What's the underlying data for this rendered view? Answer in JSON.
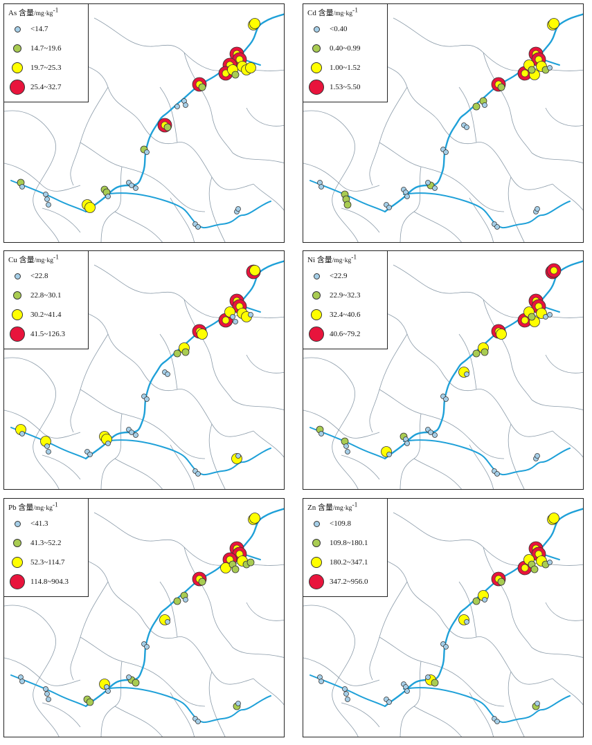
{
  "colors": {
    "river": "#1ea0d8",
    "boundary": "#8a9aa8",
    "class_fill": [
      "#a6cfe8",
      "#a9cc52",
      "#ffff00",
      "#e8143c"
    ],
    "class_stroke": "#333333"
  },
  "panels": [
    {
      "element": "As",
      "title_suffix": "含量",
      "unit": "/mg·kg",
      "unit_exp": "-1",
      "classes": [
        "<14.7",
        "14.7~19.6",
        "19.7~25.3",
        "25.4~32.7"
      ]
    },
    {
      "element": "Cd",
      "title_suffix": "含量",
      "unit": "/mg·kg",
      "unit_exp": "-1",
      "classes": [
        "<0.40",
        "0.40~0.99",
        "1.00~1.52",
        "1.53~5.50"
      ]
    },
    {
      "element": "Cu",
      "title_suffix": "含量",
      "unit": "/mg·kg",
      "unit_exp": "-1",
      "classes": [
        "<22.8",
        "22.8~30.1",
        "30.2~41.4",
        "41.5~126.3"
      ]
    },
    {
      "element": "Ni",
      "title_suffix": "含量",
      "unit": "/mg·kg",
      "unit_exp": "-1",
      "classes": [
        "<22.9",
        "22.9~32.3",
        "32.4~40.6",
        "40.6~79.2"
      ]
    },
    {
      "element": "Pb",
      "title_suffix": "含量",
      "unit": "/mg·kg",
      "unit_exp": "-1",
      "classes": [
        "<41.3",
        "41.3~52.2",
        "52.3~114.7",
        "114.8~904.3"
      ]
    },
    {
      "element": "Zn",
      "title_suffix": "含量",
      "unit": "/mg·kg",
      "unit_exp": "-1",
      "classes": [
        "<109.8",
        "109.8~180.1",
        "180.2~347.1",
        "347.2~956.0"
      ]
    }
  ]
}
